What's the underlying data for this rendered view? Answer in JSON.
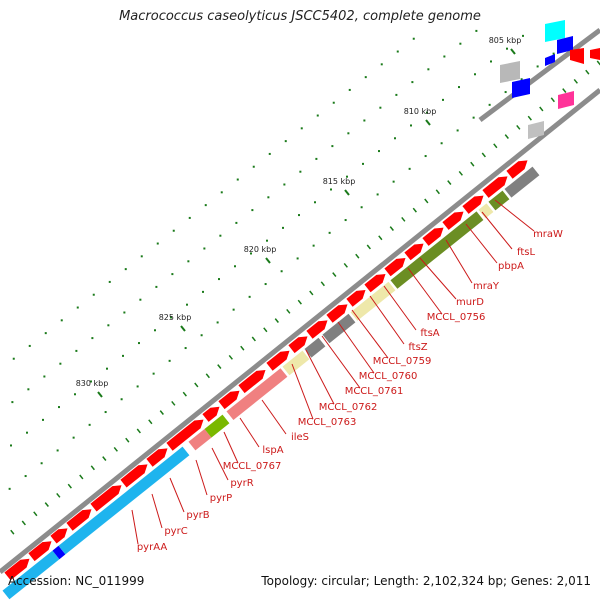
{
  "title": "Macrococcus caseolyticus JSCC5402, complete genome",
  "footer": {
    "accession": "Accession: NC_011999",
    "summary": "Topology: circular; Length: 2,102,324 bp; Genes: 2,011"
  },
  "ruler": {
    "ticks": [
      "805 kbp",
      "810 kbp",
      "815 kbp",
      "820 kbp",
      "825 kbp",
      "830 kbp"
    ]
  },
  "gene_labels": [
    "mraW",
    "ftsL",
    "pbpA",
    "mraY",
    "murD",
    "MCCL_0756",
    "ftsA",
    "ftsZ",
    "MCCL_0759",
    "MCCL_0760",
    "MCCL_0761",
    "MCCL_0762",
    "MCCL_0763",
    "ileS",
    "lspA",
    "MCCL_0767",
    "pyrR",
    "pyrP",
    "pyrB",
    "pyrC",
    "pyrAA"
  ],
  "colors": {
    "backbone": "#8c8c8c",
    "cds": "#ff0000",
    "cog_olive": "#6b8e23",
    "cog_khaki": "#eee8aa",
    "cog_gray": "#808080",
    "cog_salmon": "#f08080",
    "cog_skyblue": "#1eb4ee",
    "cog_blue": "#0000ff",
    "cog_cyan": "#00ffff",
    "cog_magenta": "#ff3399",
    "cog_green": "#7ab800",
    "label": "#cc1a1a"
  }
}
